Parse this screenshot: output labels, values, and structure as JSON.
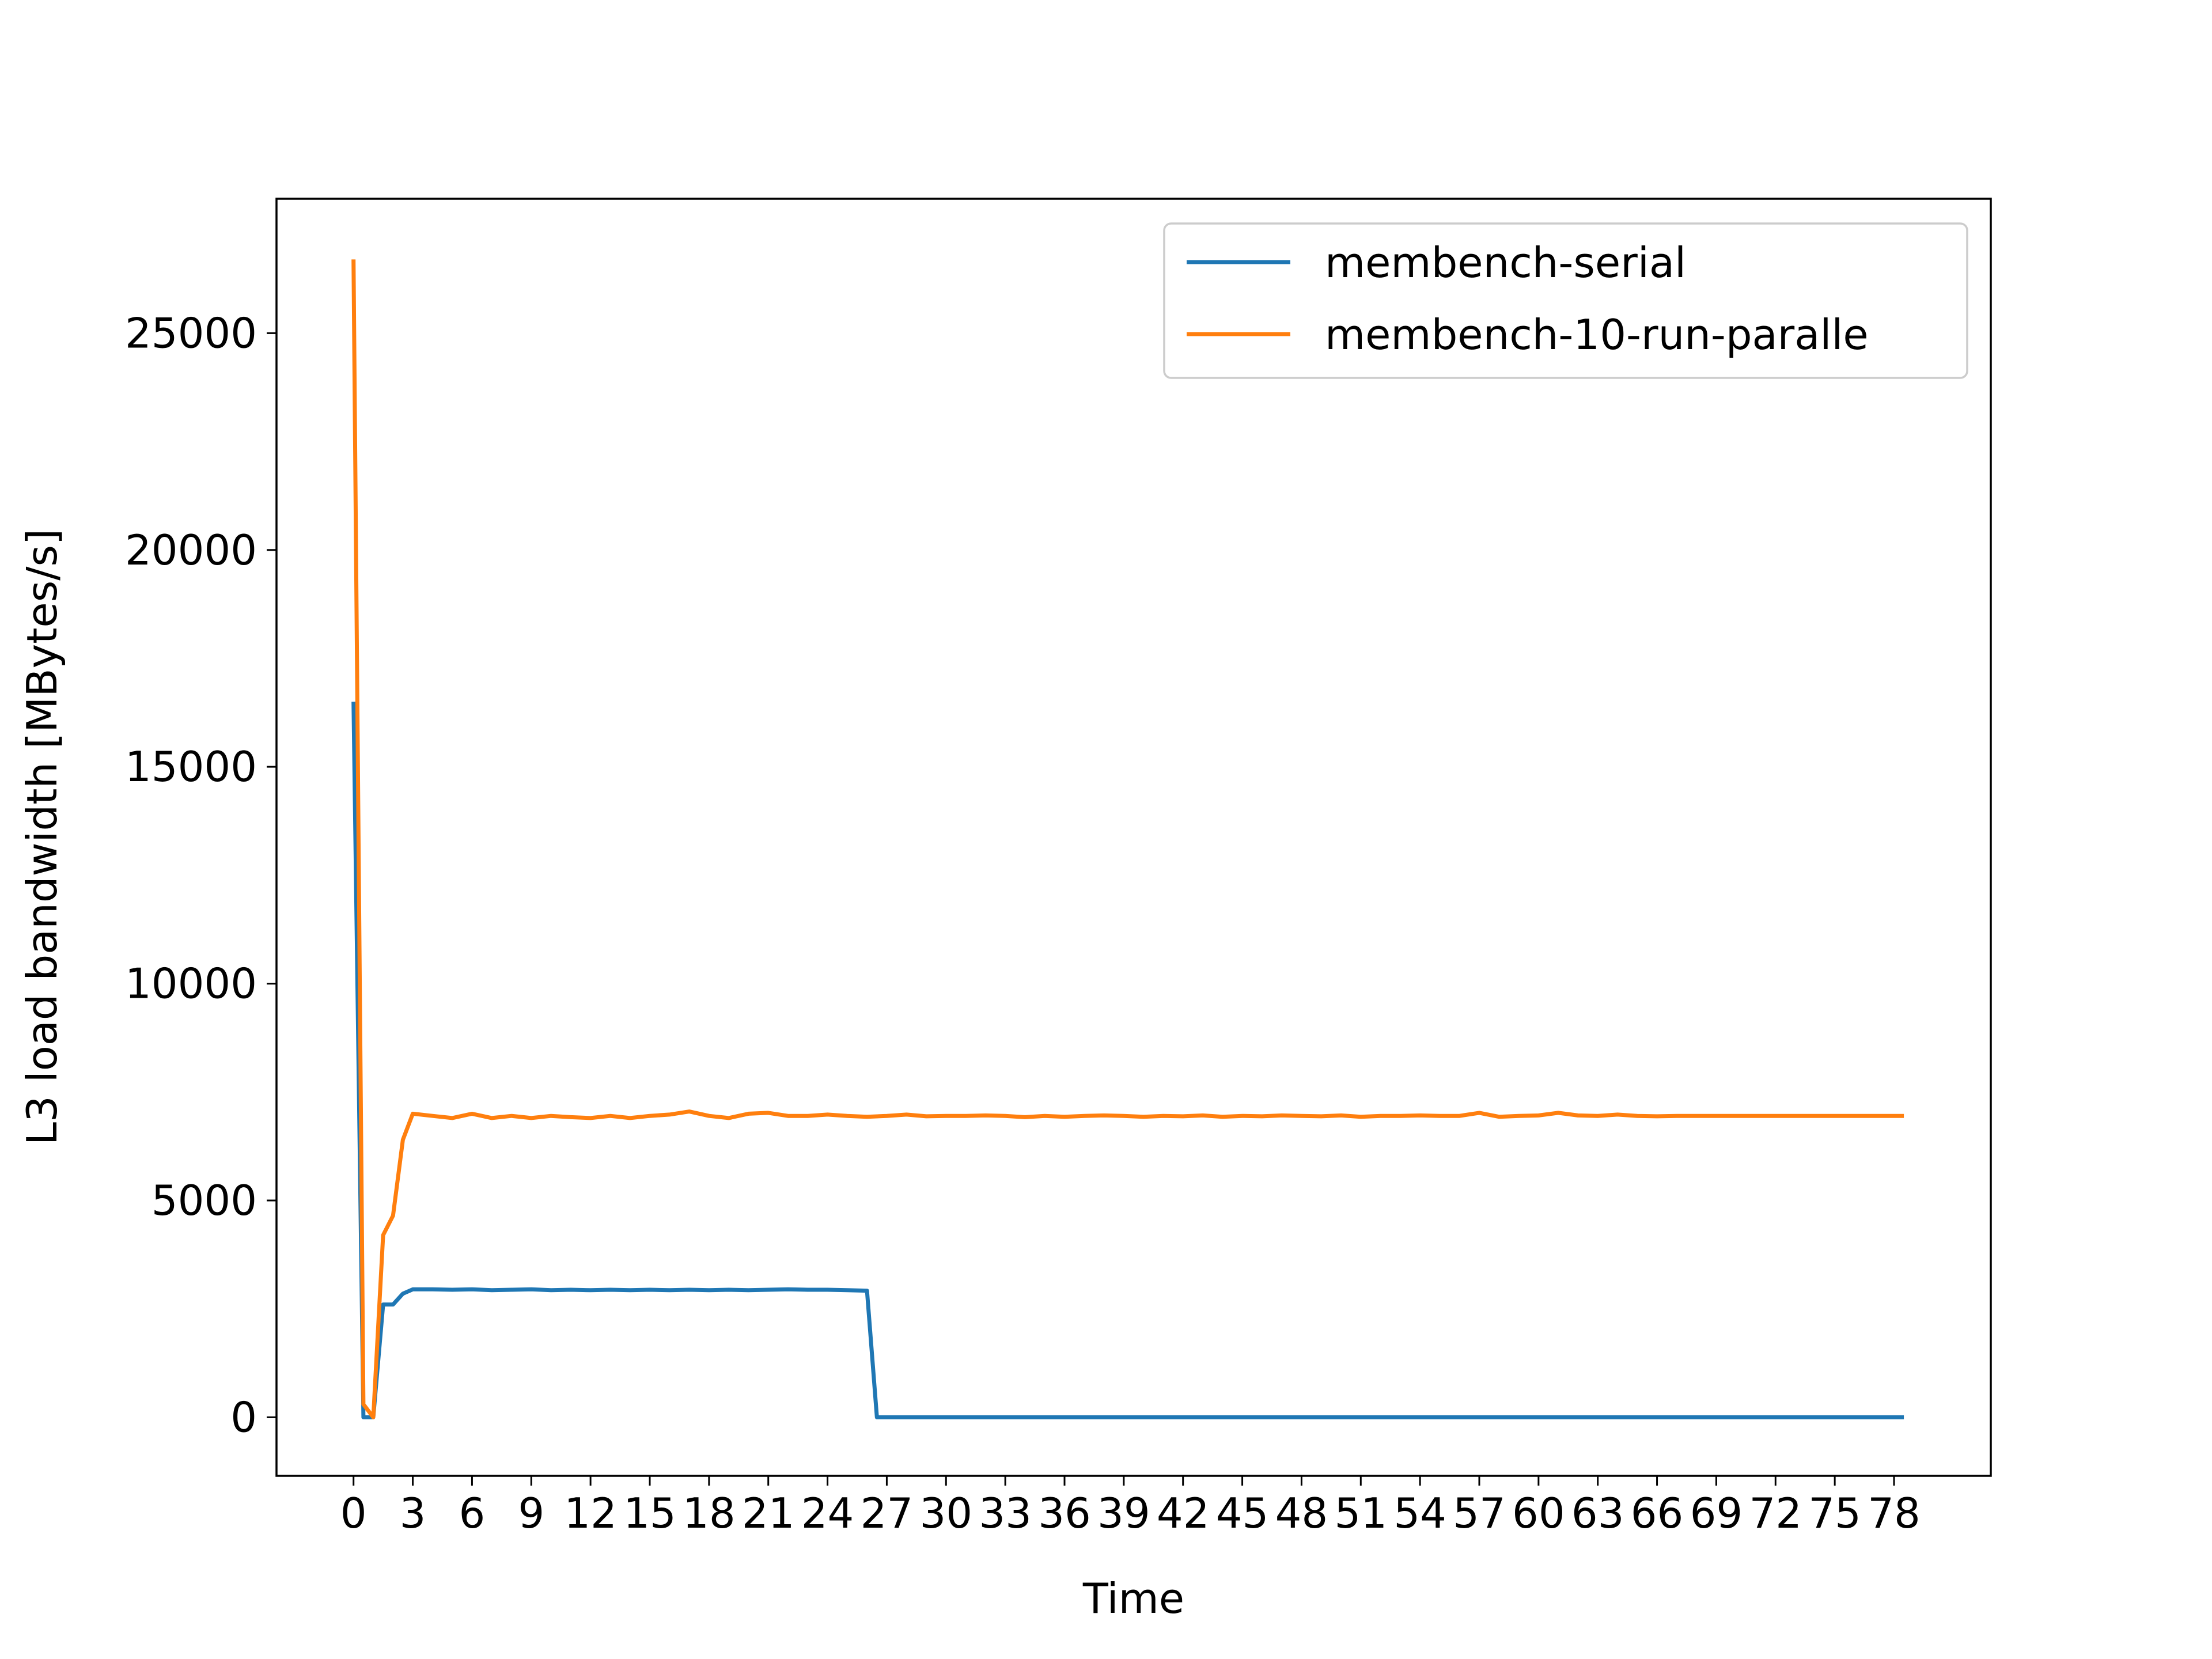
{
  "chart_data": {
    "type": "line",
    "title": "",
    "xlabel": "Time",
    "ylabel": "L3 load bandwidth [MBytes/s]",
    "xlim": [
      -3.9,
      82.9
    ],
    "ylim": [
      -1350,
      28100
    ],
    "x_ticks": [
      0,
      3,
      6,
      9,
      12,
      15,
      18,
      21,
      24,
      27,
      30,
      33,
      36,
      39,
      42,
      45,
      48,
      51,
      54,
      57,
      60,
      63,
      66,
      69,
      72,
      75,
      78
    ],
    "y_ticks": [
      0,
      5000,
      10000,
      15000,
      20000,
      25000
    ],
    "grid": false,
    "legend_position": "top-right",
    "series": [
      {
        "name": "membench-serial",
        "color": "#1f77b4",
        "x": [
          0,
          0.5,
          1,
          1.5,
          2,
          2.5,
          3,
          4,
          5,
          6,
          7,
          8,
          9,
          10,
          11,
          12,
          13,
          14,
          15,
          16,
          17,
          18,
          19,
          20,
          21,
          22,
          23,
          24,
          25,
          26,
          26.5,
          27,
          28,
          30,
          35,
          40,
          45,
          50,
          55,
          60,
          65,
          70,
          75,
          78.5
        ],
        "values": [
          16500,
          0,
          0,
          2600,
          2600,
          2850,
          2950,
          2950,
          2940,
          2950,
          2930,
          2940,
          2950,
          2930,
          2940,
          2930,
          2940,
          2930,
          2940,
          2930,
          2940,
          2930,
          2940,
          2930,
          2940,
          2950,
          2940,
          2940,
          2930,
          2920,
          0,
          0,
          0,
          0,
          0,
          0,
          0,
          0,
          0,
          0,
          0,
          0,
          0,
          0
        ]
      },
      {
        "name": "membench-10-run-paralle",
        "color": "#ff7f0e",
        "x": [
          0,
          0.5,
          1,
          1.5,
          2,
          2.5,
          3,
          4,
          5,
          6,
          7,
          8,
          9,
          10,
          11,
          12,
          13,
          14,
          15,
          16,
          17,
          18,
          19,
          20,
          21,
          22,
          23,
          24,
          25,
          26,
          27,
          28,
          29,
          30,
          31,
          32,
          33,
          34,
          35,
          36,
          37,
          38,
          39,
          40,
          41,
          42,
          43,
          44,
          45,
          46,
          47,
          48,
          49,
          50,
          51,
          52,
          53,
          54,
          55,
          56,
          57,
          58,
          59,
          60,
          61,
          62,
          63,
          64,
          65,
          66,
          67,
          68,
          69,
          70,
          71,
          72,
          73,
          74,
          75,
          76,
          77,
          78,
          78.5
        ],
        "values": [
          26700,
          300,
          0,
          4200,
          4650,
          6400,
          7000,
          6950,
          6900,
          7000,
          6900,
          6950,
          6900,
          6950,
          6920,
          6900,
          6950,
          6900,
          6950,
          6980,
          7050,
          6950,
          6900,
          7000,
          7020,
          6950,
          6950,
          6980,
          6950,
          6930,
          6950,
          6980,
          6940,
          6950,
          6950,
          6960,
          6950,
          6920,
          6950,
          6930,
          6950,
          6960,
          6950,
          6930,
          6950,
          6940,
          6960,
          6930,
          6950,
          6940,
          6960,
          6950,
          6940,
          6960,
          6930,
          6950,
          6950,
          6960,
          6950,
          6950,
          7020,
          6930,
          6950,
          6960,
          7020,
          6960,
          6950,
          6980,
          6950,
          6940,
          6950,
          6950,
          6950,
          6950,
          6950,
          6950,
          6950,
          6950,
          6950,
          6950,
          6950,
          6950,
          6950
        ]
      }
    ]
  }
}
